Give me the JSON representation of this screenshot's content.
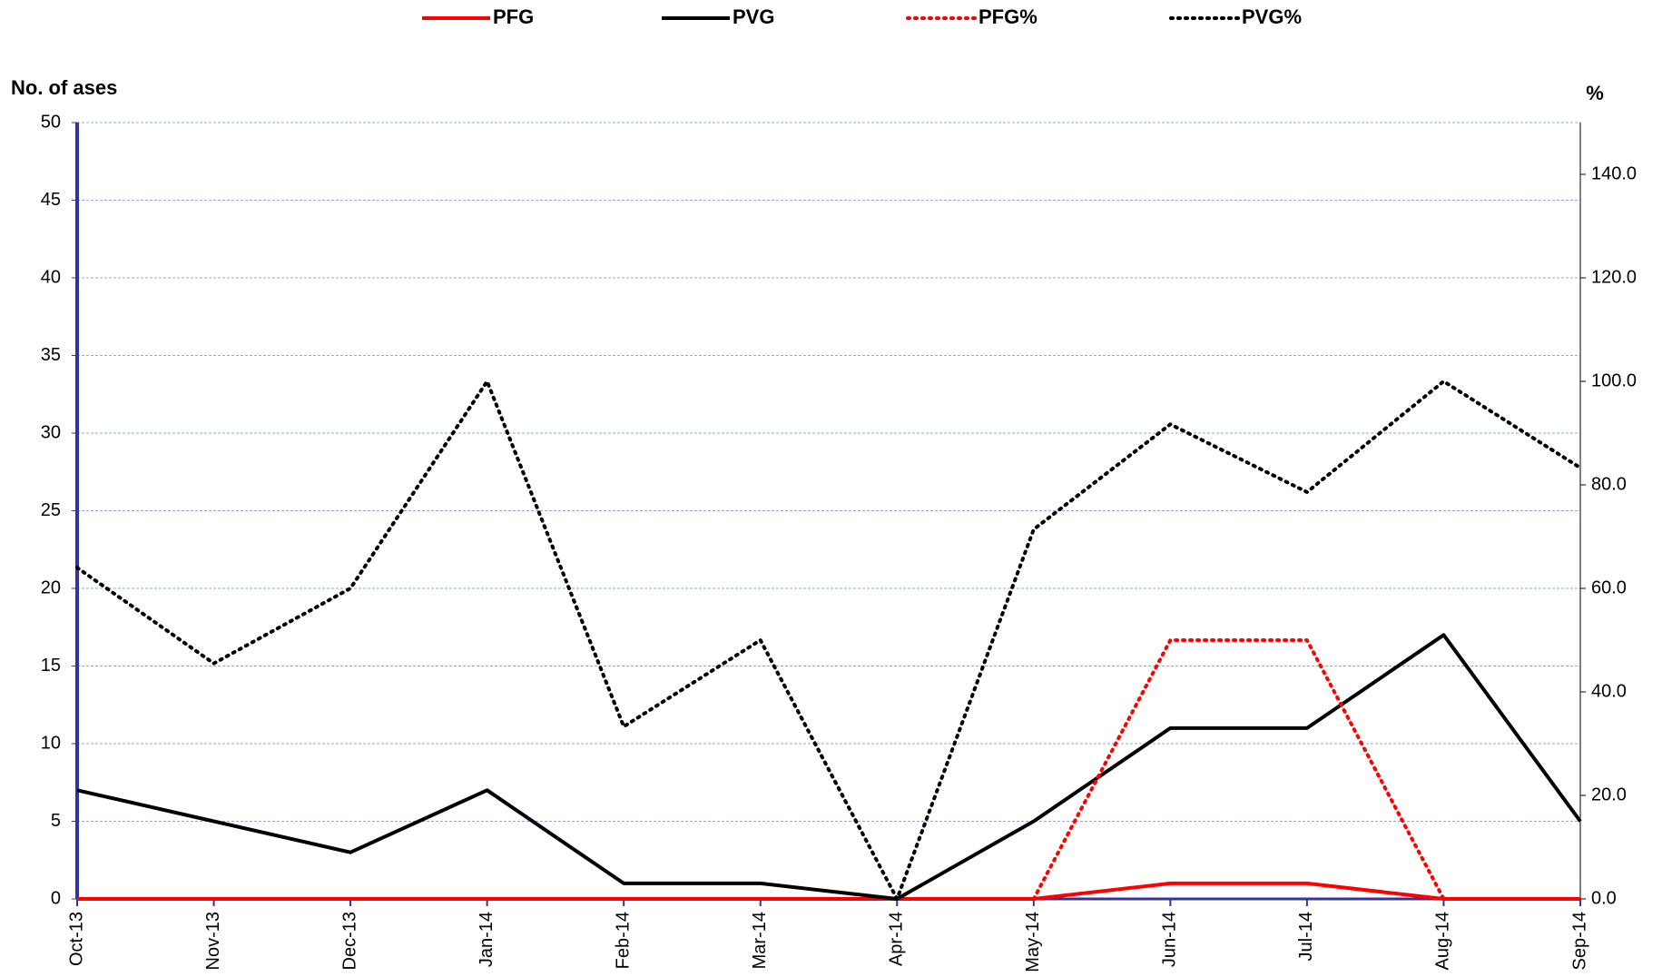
{
  "chart_data": {
    "type": "line",
    "y_label": "No. of ases",
    "y2_label": "%",
    "categories": [
      "Oct-13",
      "Nov-13",
      "Dec-13",
      "Jan-14",
      "Feb-14",
      "Mar-14",
      "Apr-14",
      "May-14",
      "Jun-14",
      "Jul-14",
      "Aug-14",
      "Sep-14"
    ],
    "series": [
      {
        "name": "PFG",
        "color": "#ff0000",
        "dash": false,
        "values": [
          0,
          0,
          0,
          0,
          0,
          0,
          0,
          0,
          1,
          1,
          0,
          0
        ]
      },
      {
        "name": "PVG",
        "color": "#000000",
        "dash": false,
        "values": [
          7,
          5,
          3,
          7,
          1,
          1,
          0,
          5,
          11,
          11,
          17,
          5
        ]
      },
      {
        "name": "PFG%",
        "color": "#ff0000",
        "dash": true,
        "axis": "y2",
        "values": [
          null,
          null,
          null,
          null,
          null,
          null,
          null,
          0,
          50,
          50,
          0,
          null
        ]
      },
      {
        "name": "PVG%",
        "color": "#000000",
        "dash": true,
        "axis": "y2",
        "values": [
          64,
          45.5,
          60,
          100,
          33.3,
          50,
          0,
          71.4,
          91.7,
          78.6,
          100,
          83.3
        ]
      }
    ],
    "ylim": [
      0,
      50
    ],
    "yticks": [
      0,
      5,
      10,
      15,
      20,
      25,
      30,
      35,
      40,
      45,
      50
    ],
    "y2lim": [
      0,
      150
    ],
    "y2ticks": [
      {
        "value": 0,
        "label": "0.0"
      },
      {
        "value": 20,
        "label": "20.0"
      },
      {
        "value": 40,
        "label": "40.0"
      },
      {
        "value": 60,
        "label": "60.0"
      },
      {
        "value": 80,
        "label": "80.0"
      },
      {
        "value": 100,
        "label": "100.0"
      },
      {
        "value": 120,
        "label": "120.0"
      },
      {
        "value": 140,
        "label": "140.0"
      }
    ],
    "grid": true,
    "legend": "top"
  }
}
